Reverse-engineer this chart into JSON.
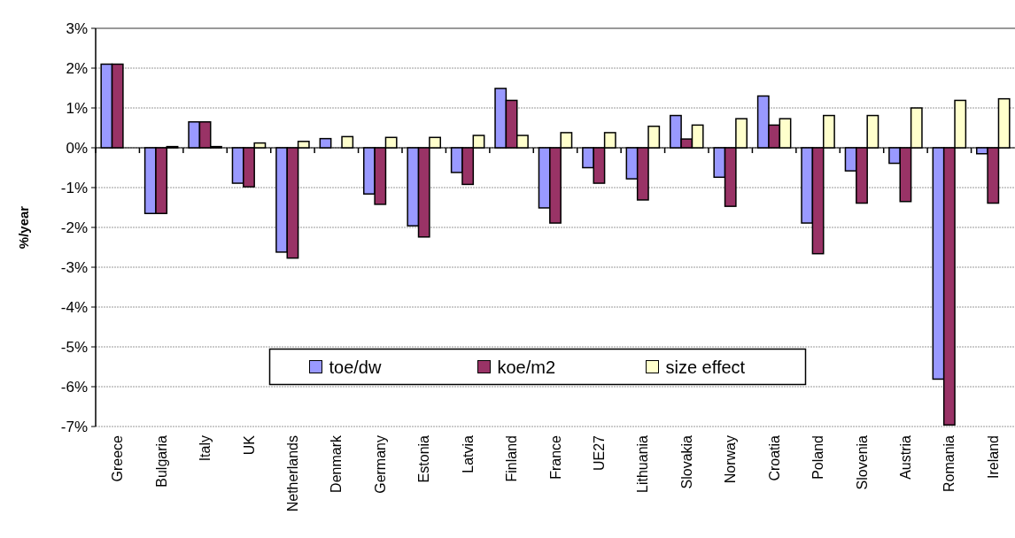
{
  "chart_data": {
    "type": "bar",
    "ylabel": "%/year",
    "categories": [
      "Greece",
      "Bulgaria",
      "Italy",
      "UK",
      "Netherlands",
      "Denmark",
      "Germany",
      "Estonia",
      "Latvia",
      "Finland",
      "France",
      "UE27",
      "Lithuania",
      "Slovakia",
      "Norway",
      "Croatia",
      "Poland",
      "Slovenia",
      "Austria",
      "Romania",
      "Ireland"
    ],
    "series": [
      {
        "name": "toe/dw",
        "color": "#9999ff",
        "values": [
          2.1,
          -1.65,
          0.65,
          -0.89,
          -2.62,
          0.23,
          -1.16,
          -1.96,
          -0.62,
          1.49,
          -1.51,
          -0.5,
          -0.78,
          0.81,
          -0.74,
          1.3,
          -1.89,
          -0.58,
          -0.39,
          -5.81,
          -0.15
        ]
      },
      {
        "name": "koe/m2",
        "color": "#993366",
        "values": [
          2.1,
          -1.65,
          0.65,
          -0.98,
          -2.77,
          0,
          -1.42,
          -2.24,
          -0.92,
          1.19,
          -1.89,
          -0.89,
          -1.31,
          0.22,
          -1.47,
          0.57,
          -2.66,
          -1.39,
          -1.35,
          -6.96,
          -1.39
        ]
      },
      {
        "name": "size effect",
        "color": "#ffffcc",
        "values": [
          0,
          0.03,
          0.03,
          0.12,
          0.16,
          0.28,
          0.26,
          0.26,
          0.31,
          0.31,
          0.38,
          0.38,
          0.54,
          0.57,
          0.73,
          0.73,
          0.81,
          0.81,
          1.0,
          1.19,
          1.23
        ]
      }
    ],
    "ylim": [
      -7,
      3
    ],
    "yticks": [
      {
        "value": -7,
        "label": "-7%"
      },
      {
        "value": -6,
        "label": "-6%"
      },
      {
        "value": -5,
        "label": "-5%"
      },
      {
        "value": -4,
        "label": "-4%"
      },
      {
        "value": -3,
        "label": "-3%"
      },
      {
        "value": -2,
        "label": "-2%"
      },
      {
        "value": -1,
        "label": "-1%"
      },
      {
        "value": 0,
        "label": "0%"
      },
      {
        "value": 1,
        "label": "1%"
      },
      {
        "value": 2,
        "label": "2%"
      },
      {
        "value": 3,
        "label": "3%"
      }
    ],
    "grid": "y",
    "legend": "bottom"
  }
}
